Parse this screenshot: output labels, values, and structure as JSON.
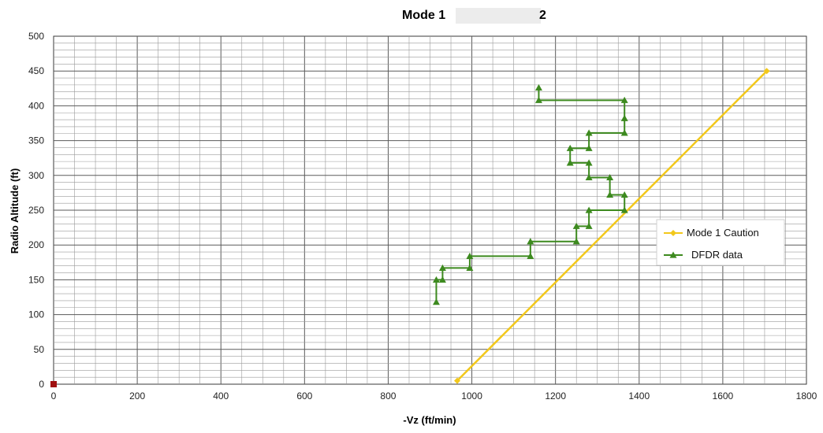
{
  "chart_data": {
    "type": "line",
    "title_left": "Mode 1",
    "title_right": "2",
    "xlabel": "-Vz (ft/min)",
    "ylabel": "Radio Altitude (ft)",
    "xlim": [
      0,
      1800
    ],
    "ylim": [
      0,
      500
    ],
    "x_ticks": [
      0,
      200,
      400,
      600,
      800,
      1000,
      1200,
      1400,
      1600,
      1800
    ],
    "y_ticks": [
      0,
      50,
      100,
      150,
      200,
      250,
      300,
      350,
      400,
      450,
      500
    ],
    "grid": true,
    "legend_position": "right",
    "series": [
      {
        "name": "Mode 1 Caution",
        "color": "#f2c81b",
        "marker": "diamond",
        "points": [
          [
            965,
            5
          ],
          [
            1705,
            450
          ]
        ]
      },
      {
        "name": "DFDR data",
        "color": "#3d8a1f",
        "marker": "triangle",
        "points": [
          [
            915,
            118
          ],
          [
            915,
            150
          ],
          [
            930,
            150
          ],
          [
            930,
            167
          ],
          [
            995,
            167
          ],
          [
            995,
            184
          ],
          [
            1140,
            184
          ],
          [
            1140,
            205
          ],
          [
            1250,
            205
          ],
          [
            1250,
            227
          ],
          [
            1280,
            227
          ],
          [
            1280,
            250
          ],
          [
            1365,
            250
          ],
          [
            1365,
            272
          ],
          [
            1330,
            272
          ],
          [
            1330,
            297
          ],
          [
            1280,
            297
          ],
          [
            1280,
            318
          ],
          [
            1235,
            318
          ],
          [
            1235,
            339
          ],
          [
            1280,
            339
          ],
          [
            1280,
            361
          ],
          [
            1365,
            361
          ],
          [
            1365,
            382
          ],
          [
            1365,
            408
          ],
          [
            1160,
            408
          ],
          [
            1160,
            426
          ]
        ]
      }
    ],
    "extra_marker": {
      "x": 0,
      "y": 0,
      "color": "#a01010",
      "shape": "square"
    }
  }
}
